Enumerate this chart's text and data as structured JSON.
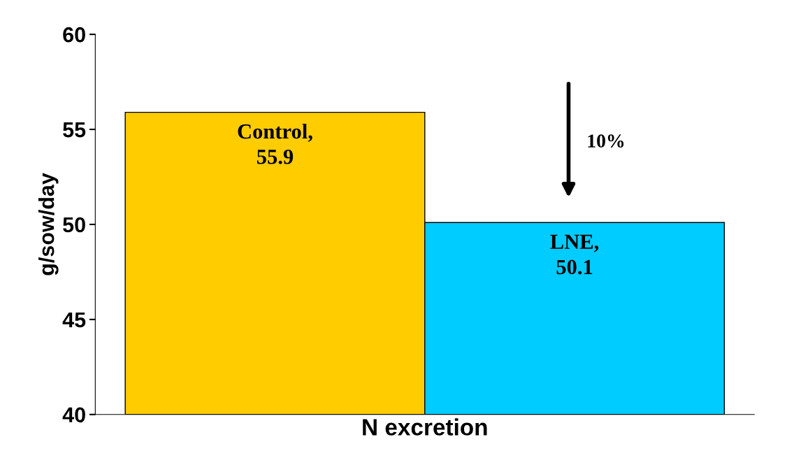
{
  "chart_data": {
    "type": "bar",
    "xlabel": "N excretion",
    "ylabel": "g/sow/day",
    "categories": [
      null,
      null
    ],
    "values": [
      55.9,
      50.1
    ],
    "colors": [
      "#ffcc00",
      "#00ccff"
    ],
    "value_labels": [
      "Control,\n55.9",
      "LNE,\n50.1"
    ],
    "ylim": [
      40,
      60
    ],
    "yticks": [
      40,
      45,
      50,
      55,
      60
    ],
    "tick_labels": "y",
    "grid": false,
    "legend": false,
    "annotations": [
      "10%"
    ]
  }
}
